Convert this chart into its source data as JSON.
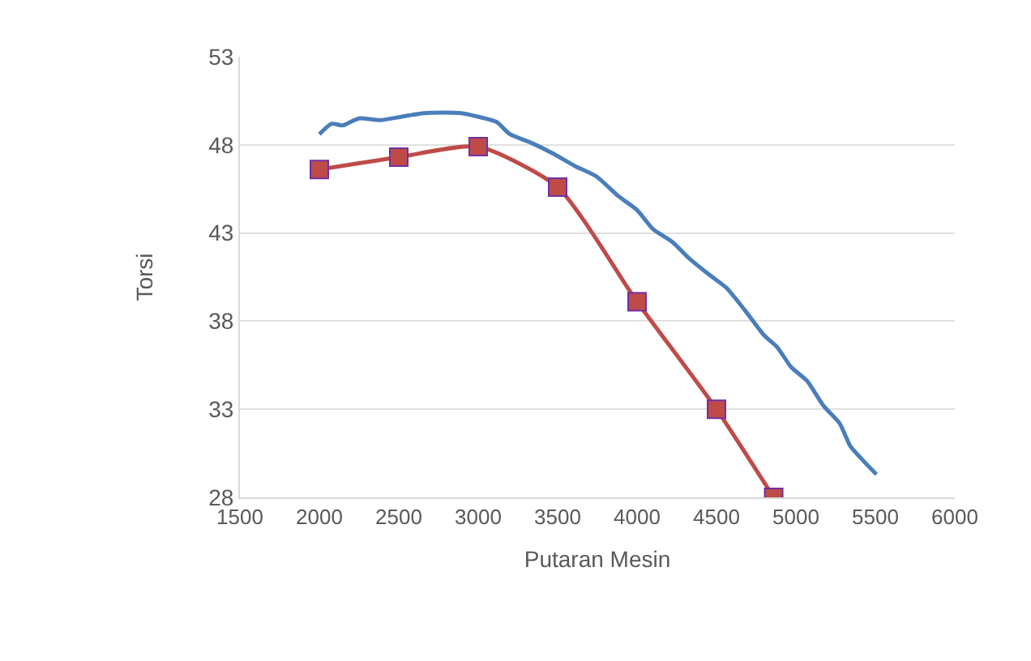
{
  "chart_data": {
    "type": "line",
    "xlabel": "Putaran Mesin",
    "ylabel": "Torsi",
    "xlim": [
      1500,
      6000
    ],
    "xticks": [
      1500,
      2000,
      2500,
      3000,
      3500,
      4000,
      4500,
      5000,
      5500,
      6000
    ],
    "ylim": [
      28,
      53
    ],
    "yticks": [
      28,
      33,
      38,
      43,
      48,
      53
    ],
    "grid": "y",
    "series": [
      {
        "color": "#4a7ebb",
        "marker": "none",
        "x": [
          2000,
          2078,
          2146,
          2248,
          2384,
          2520,
          2656,
          2894,
          2997,
          3115,
          3200,
          3337,
          3473,
          3609,
          3745,
          3881,
          4000,
          4102,
          4221,
          4323,
          4459,
          4561,
          4680,
          4799,
          4884,
          4969,
          5071,
          5173,
          5275,
          5343,
          5411,
          5507
        ],
        "values": [
          48.6,
          49.2,
          49.1,
          49.5,
          49.4,
          49.6,
          49.8,
          49.8,
          49.6,
          49.3,
          48.6,
          48.1,
          47.5,
          46.8,
          46.2,
          45.1,
          44.3,
          43.2,
          42.5,
          41.6,
          40.6,
          39.9,
          38.6,
          37.2,
          36.5,
          35.4,
          34.6,
          33.2,
          32.2,
          30.9,
          30.2,
          29.3
        ]
      },
      {
        "color": "#be4b48",
        "marker": "square",
        "x": [
          2000,
          2500,
          3000,
          3500,
          4000,
          4500,
          4860
        ],
        "values": [
          46.6,
          47.3,
          47.9,
          45.6,
          39.1,
          33.0,
          28.0
        ]
      }
    ]
  }
}
